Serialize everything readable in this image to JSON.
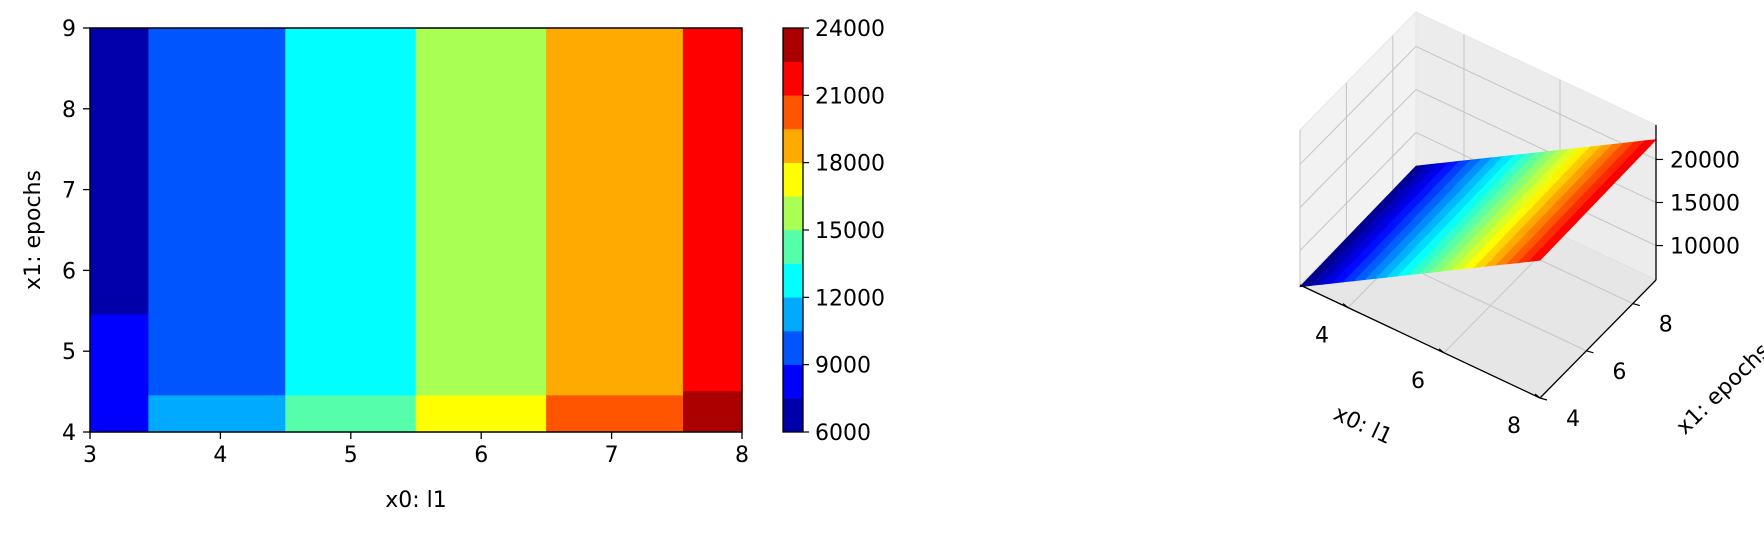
{
  "chart_data": [
    {
      "type": "contour",
      "title": "",
      "xlabel": "x0: l1",
      "ylabel": "x1: epochs",
      "xlim": [
        3,
        8
      ],
      "ylim": [
        4,
        9
      ],
      "x_ticks": [
        "3",
        "4",
        "5",
        "6",
        "7",
        "8"
      ],
      "y_ticks": [
        "4",
        "5",
        "6",
        "7",
        "8",
        "9"
      ],
      "colormap": "jet",
      "color_levels": [
        6000,
        7500,
        9000,
        10500,
        12000,
        13500,
        15000,
        16500,
        18000,
        19500,
        21000,
        22500,
        24000
      ],
      "colorbar_ticks": [
        "6000",
        "9000",
        "12000",
        "15000",
        "18000",
        "21000",
        "24000"
      ],
      "regions": [
        {
          "x": [
            3.0,
            3.45
          ],
          "y": [
            5.45,
            9.0
          ],
          "value": 6750
        },
        {
          "x": [
            3.0,
            3.45
          ],
          "y": [
            4.0,
            5.45
          ],
          "value": 8250
        },
        {
          "x": [
            3.45,
            4.5
          ],
          "y": [
            4.45,
            9.0
          ],
          "value": 9750
        },
        {
          "x": [
            3.45,
            4.5
          ],
          "y": [
            4.0,
            4.45
          ],
          "value": 11250
        },
        {
          "x": [
            4.5,
            5.5
          ],
          "y": [
            4.45,
            9.0
          ],
          "value": 12750
        },
        {
          "x": [
            4.5,
            5.5
          ],
          "y": [
            4.0,
            4.45
          ],
          "value": 14250
        },
        {
          "x": [
            5.5,
            6.5
          ],
          "y": [
            4.45,
            9.0
          ],
          "value": 15750
        },
        {
          "x": [
            5.5,
            6.5
          ],
          "y": [
            4.0,
            4.45
          ],
          "value": 17250
        },
        {
          "x": [
            6.5,
            7.55
          ],
          "y": [
            4.45,
            9.0
          ],
          "value": 18750
        },
        {
          "x": [
            6.5,
            7.55
          ],
          "y": [
            4.0,
            4.45
          ],
          "value": 20250
        },
        {
          "x": [
            7.55,
            8.0
          ],
          "y": [
            4.5,
            9.0
          ],
          "value": 21750
        },
        {
          "x": [
            7.55,
            8.0
          ],
          "y": [
            4.0,
            4.5
          ],
          "value": 23250
        }
      ]
    },
    {
      "type": "surface3d",
      "title": "",
      "xlabel": "x0: l1",
      "ylabel": "x1: epochs",
      "zlabel": "",
      "x_ticks": [
        "4",
        "6",
        "8"
      ],
      "y_ticks": [
        "4",
        "6",
        "8"
      ],
      "z_ticks": [
        "10000",
        "15000",
        "20000"
      ],
      "xlim": [
        3,
        8
      ],
      "ylim": [
        4,
        9
      ],
      "zlim": [
        6000,
        24000
      ],
      "colormap": "jet",
      "surface": "value increases with x0: l1, nearly constant along x1: epochs"
    }
  ]
}
